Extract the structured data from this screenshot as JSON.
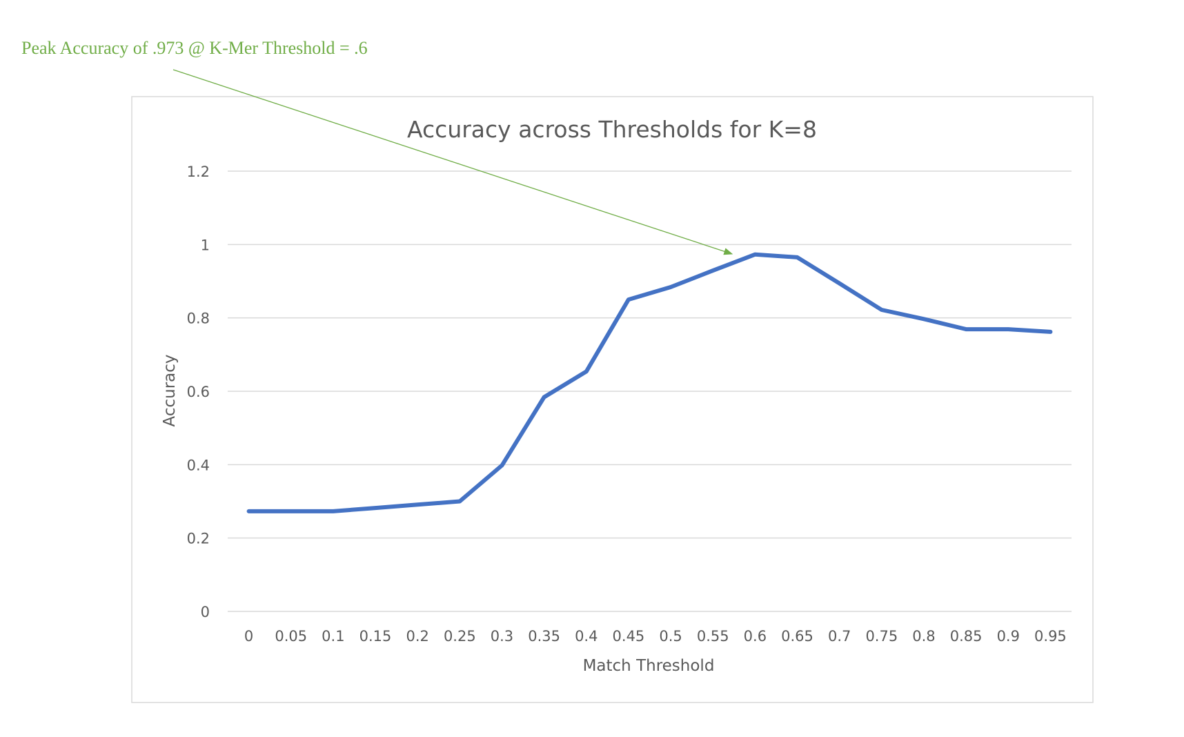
{
  "annotation": {
    "text": "Peak Accuracy of .973 @ K-Mer Threshold = .6",
    "color": "#70ad47"
  },
  "chart_data": {
    "type": "line",
    "title": "Accuracy across Thresholds for K=8",
    "xlabel": "Match Threshold",
    "ylabel": "Accuracy",
    "categories": [
      "0",
      "0.05",
      "0.1",
      "0.15",
      "0.2",
      "0.25",
      "0.3",
      "0.35",
      "0.4",
      "0.45",
      "0.5",
      "0.55",
      "0.6",
      "0.65",
      "0.7",
      "0.75",
      "0.8",
      "0.85",
      "0.9",
      "0.95"
    ],
    "y_ticks": [
      "0",
      "0.2",
      "0.4",
      "0.6",
      "0.8",
      "1",
      "1.2"
    ],
    "ylim": [
      0,
      1.2
    ],
    "grid": true,
    "legend": "none",
    "series": [
      {
        "color": "#4472c4",
        "values": [
          0.273,
          0.273,
          0.273,
          0.282,
          0.291,
          0.3,
          0.398,
          0.584,
          0.654,
          0.85,
          0.884,
          0.929,
          0.973,
          0.965,
          0.894,
          0.822,
          0.797,
          0.769,
          0.769,
          0.762
        ]
      }
    ]
  }
}
